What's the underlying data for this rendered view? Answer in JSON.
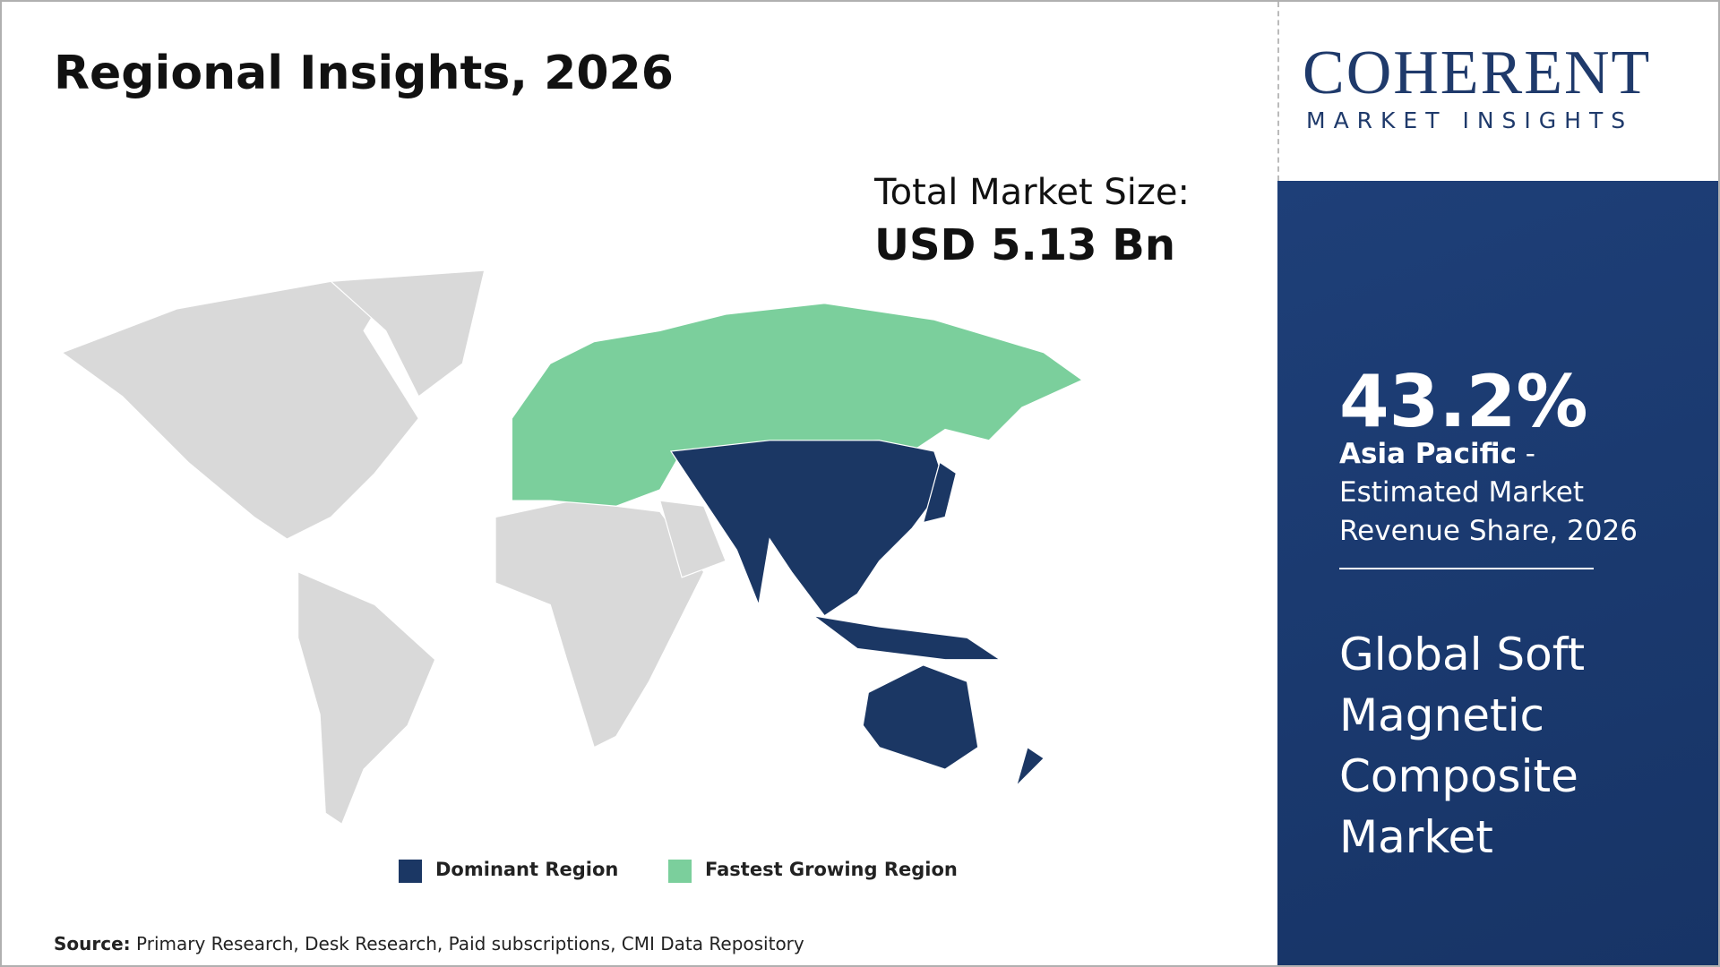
{
  "header": {
    "title": "Regional Insights, 2026"
  },
  "market_size": {
    "label": "Total Market Size:",
    "value": "USD 5.13 Bn"
  },
  "legend": {
    "items": [
      {
        "label": "Dominant Region",
        "color": "#1b3764"
      },
      {
        "label": "Fastest Growing Region",
        "color": "#7bcf9c"
      }
    ]
  },
  "source": {
    "label": "Source:",
    "text": "Primary Research, Desk Research, Paid subscriptions, CMI Data Repository"
  },
  "brand": {
    "name": "COHERENT",
    "tagline": "MARKET INSIGHTS"
  },
  "highlight": {
    "value": "43.2%",
    "region": "Asia Pacific",
    "description": " - Estimated Market Revenue Share, 2026",
    "market_name": "Global Soft Magnetic Composite Market"
  }
}
